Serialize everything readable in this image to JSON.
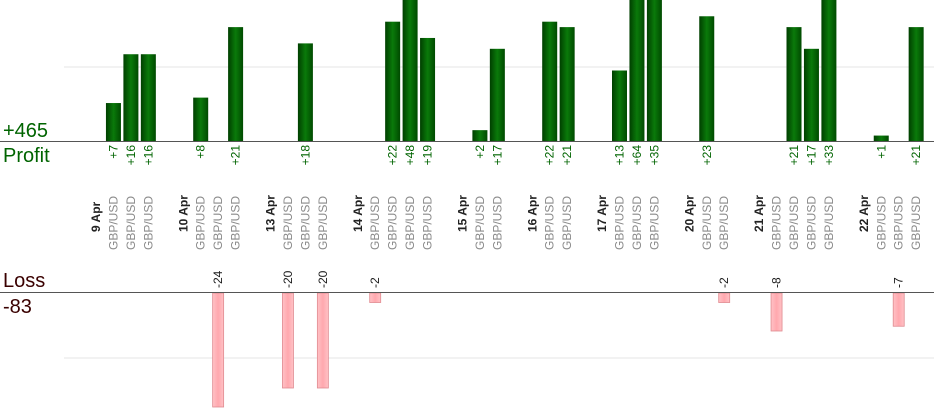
{
  "summary": {
    "profit_total": "+465",
    "profit_label": "Profit",
    "loss_label": "Loss",
    "loss_total": "-83"
  },
  "colors": {
    "profit_bar": "#005a00",
    "profit_text": "#006400",
    "loss_bar": "#ffb3b8",
    "loss_bar_edge": "#e08a90",
    "loss_text": "#1a1a1a",
    "axis": "#555555",
    "grid": "#e6e6e6",
    "date_text": "#222222",
    "pair_text": "#8a8a8a"
  },
  "chart_data": {
    "type": "bar",
    "profit_ylim": [
      0,
      26
    ],
    "loss_ylim": [
      0,
      24
    ],
    "grid": true,
    "columns": [
      {
        "date": "9 Apr"
      },
      {
        "label": "GBP/USD",
        "value": 7
      },
      {
        "label": "GBP/USD",
        "value": 16
      },
      {
        "label": "GBP/USD",
        "value": 16
      },
      {
        "spacer": true
      },
      {
        "date": "10 Apr"
      },
      {
        "label": "GBP/USD",
        "value": 8
      },
      {
        "label": "GBP/USD",
        "value": -24
      },
      {
        "label": "GBP/USD",
        "value": 21
      },
      {
        "spacer": true
      },
      {
        "date": "13 Apr"
      },
      {
        "label": "GBP/USD",
        "value": -20
      },
      {
        "label": "GBP/USD",
        "value": 18
      },
      {
        "label": "GBP/USD",
        "value": -20
      },
      {
        "spacer": true
      },
      {
        "date": "14 Apr"
      },
      {
        "label": "GBP/USD",
        "value": -2
      },
      {
        "label": "GBP/USD",
        "value": 22
      },
      {
        "label": "GBP/USD",
        "value": 48
      },
      {
        "label": "GBP/USD",
        "value": 19
      },
      {
        "spacer": true
      },
      {
        "date": "15 Apr"
      },
      {
        "label": "GBP/USD",
        "value": 2
      },
      {
        "label": "GBP/USD",
        "value": 17
      },
      {
        "spacer": true
      },
      {
        "date": "16 Apr"
      },
      {
        "label": "GBP/USD",
        "value": 22
      },
      {
        "label": "GBP/USD",
        "value": 21
      },
      {
        "spacer": true
      },
      {
        "date": "17 Apr"
      },
      {
        "label": "GBP/USD",
        "value": 13
      },
      {
        "label": "GBP/USD",
        "value": 64
      },
      {
        "label": "GBP/USD",
        "value": 35
      },
      {
        "spacer": true
      },
      {
        "date": "20 Apr"
      },
      {
        "label": "GBP/USD",
        "value": 23
      },
      {
        "label": "GBP/USD",
        "value": -2
      },
      {
        "spacer": true
      },
      {
        "date": "21 Apr"
      },
      {
        "label": "GBP/USD",
        "value": -8
      },
      {
        "label": "GBP/USD",
        "value": 21
      },
      {
        "label": "GBP/USD",
        "value": 17
      },
      {
        "label": "GBP/USD",
        "value": 33
      },
      {
        "spacer": true
      },
      {
        "date": "22 Apr"
      },
      {
        "label": "GBP/USD",
        "value": 1
      },
      {
        "label": "GBP/USD",
        "value": -7
      },
      {
        "label": "GBP/USD",
        "value": 21
      }
    ]
  }
}
